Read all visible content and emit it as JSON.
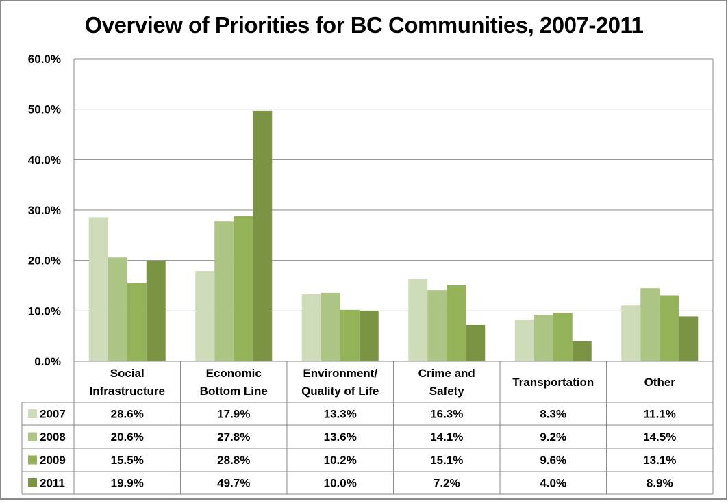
{
  "chart_data": {
    "type": "bar",
    "title": "Overview of Priorities for BC Communities, 2007-2011",
    "xlabel": "",
    "ylabel": "",
    "ylim": [
      0,
      60
    ],
    "yticks": [
      "0.0%",
      "10.0%",
      "20.0%",
      "30.0%",
      "40.0%",
      "50.0%",
      "60.0%"
    ],
    "grid": true,
    "legend": "data-table-below",
    "categories": [
      [
        "Social",
        "Infrastructure"
      ],
      [
        "Economic",
        "Bottom Line"
      ],
      [
        "Environment/",
        "Quality of Life"
      ],
      [
        "Crime and",
        "Safety"
      ],
      [
        "Transportation"
      ],
      [
        "Other"
      ]
    ],
    "series": [
      {
        "name": "2007",
        "color": "#cfdcb9",
        "values": [
          28.6,
          17.9,
          13.3,
          16.3,
          8.3,
          11.1
        ],
        "labels": [
          "28.6%",
          "17.9%",
          "13.3%",
          "16.3%",
          "8.3%",
          "11.1%"
        ]
      },
      {
        "name": "2008",
        "color": "#adc584",
        "values": [
          20.6,
          27.8,
          13.6,
          14.1,
          9.2,
          14.5
        ],
        "labels": [
          "20.6%",
          "27.8%",
          "13.6%",
          "14.1%",
          "9.2%",
          "14.5%"
        ]
      },
      {
        "name": "2009",
        "color": "#94b257",
        "values": [
          15.5,
          28.8,
          10.2,
          15.1,
          9.6,
          13.1
        ],
        "labels": [
          "15.5%",
          "28.8%",
          "10.2%",
          "15.1%",
          "9.6%",
          "13.1%"
        ]
      },
      {
        "name": "2011",
        "color": "#7b9444",
        "values": [
          19.9,
          49.7,
          10.0,
          7.2,
          4.0,
          8.9
        ],
        "labels": [
          "19.9%",
          "49.7%",
          "10.0%",
          "7.2%",
          "4.0%",
          "8.9%"
        ]
      }
    ]
  }
}
